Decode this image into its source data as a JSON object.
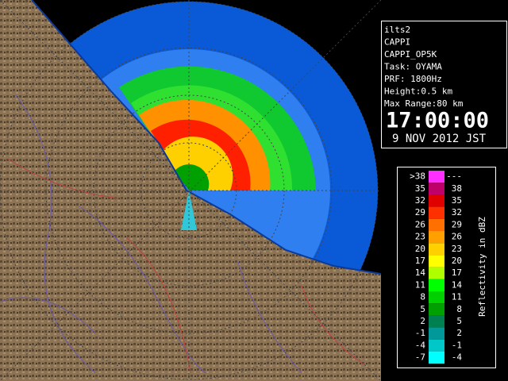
{
  "info": {
    "lines": [
      "ilts2",
      "CAPPI",
      "CAPPI_OP5K",
      "Task: OYAMA",
      "PRF: 1800Hz",
      "Height:0.5 km",
      "Max Range:80 km"
    ],
    "time": "17:00:00",
    "date": "9 NOV 2012 JST"
  },
  "legend": {
    "label": "Reflectivity in dBZ",
    "rows": [
      {
        "from": ">38",
        "to": "---",
        "color": "#ff30ff"
      },
      {
        "from": "35",
        "to": "38",
        "color": "#c0006a"
      },
      {
        "from": "32",
        "to": "35",
        "color": "#e00000"
      },
      {
        "from": "29",
        "to": "32",
        "color": "#ff3000"
      },
      {
        "from": "26",
        "to": "29",
        "color": "#ff7000"
      },
      {
        "from": "23",
        "to": "26",
        "color": "#ffa000"
      },
      {
        "from": "20",
        "to": "23",
        "color": "#ffd000"
      },
      {
        "from": "17",
        "to": "20",
        "color": "#ffff00"
      },
      {
        "from": "14",
        "to": "17",
        "color": "#b0ff00"
      },
      {
        "from": "11",
        "to": "14",
        "color": "#00ff00"
      },
      {
        "from": "8",
        "to": "11",
        "color": "#00d000"
      },
      {
        "from": "5",
        "to": "8",
        "color": "#00a000"
      },
      {
        "from": "2",
        "to": "5",
        "color": "#008050"
      },
      {
        "from": "-1",
        "to": "2",
        "color": "#009898"
      },
      {
        "from": "-4",
        "to": "-1",
        "color": "#00c8c8"
      },
      {
        "from": "-7",
        "to": "-4",
        "color": "#00ffff"
      }
    ]
  }
}
